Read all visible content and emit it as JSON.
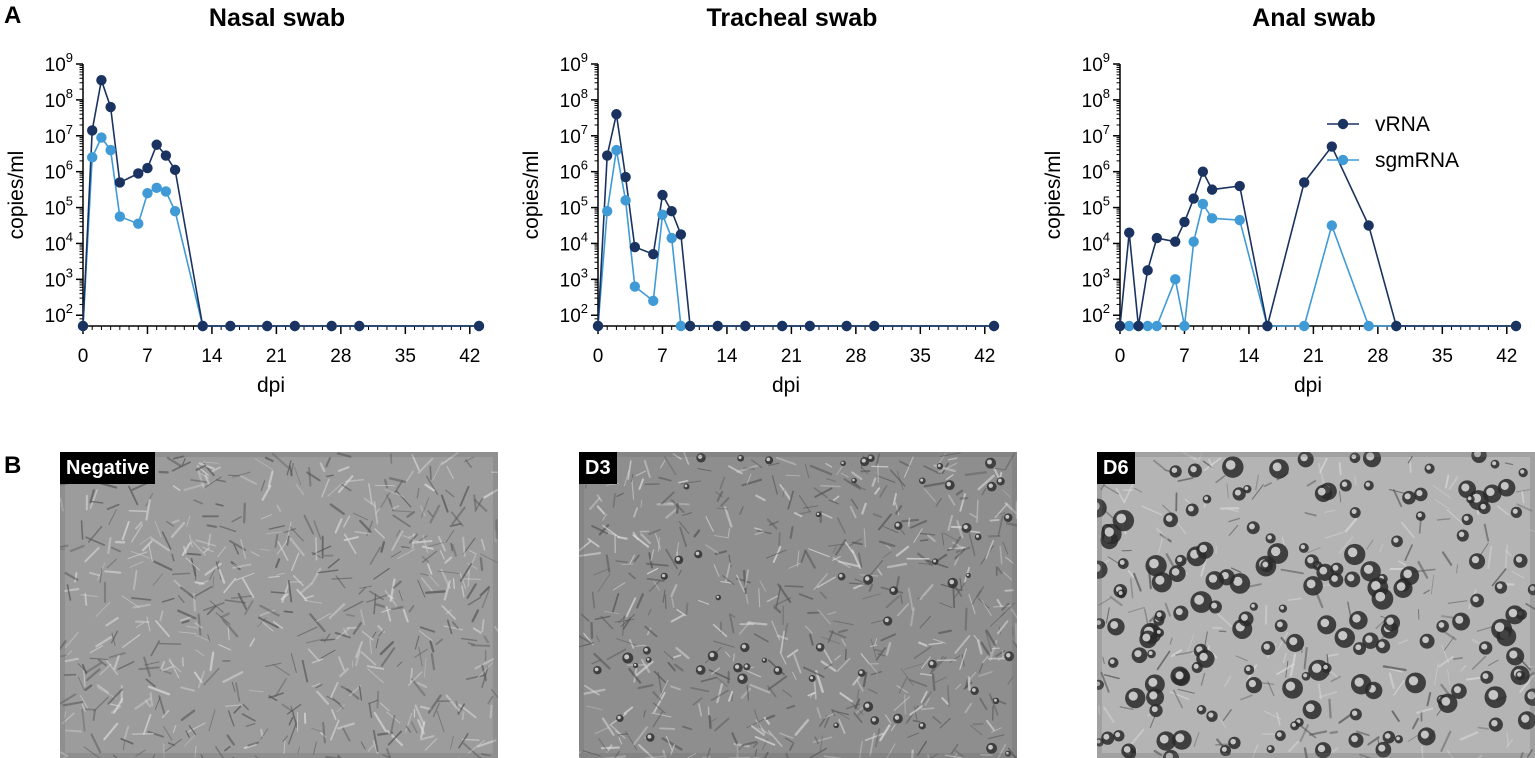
{
  "panels": {
    "a": "A",
    "b": "B"
  },
  "colors": {
    "vRNA": "#1a3360",
    "sgmRNA": "#3f9ad6"
  },
  "chart_data": [
    {
      "type": "line",
      "title": "Nasal swab",
      "xlabel": "dpi",
      "ylabel": "copies/ml",
      "yscale": "log",
      "ylim_log10": [
        1.7,
        9
      ],
      "xlim": [
        0,
        43
      ],
      "xticks": [
        0,
        7,
        14,
        21,
        28,
        35,
        42
      ],
      "ytick_exponents": [
        2,
        3,
        4,
        5,
        6,
        7,
        8,
        9
      ],
      "ytick_base": "10",
      "legend": "",
      "series": [
        {
          "name": "vRNA",
          "color": "#1a3360",
          "x": [
            0,
            1,
            2,
            3,
            4,
            6,
            7,
            8,
            9,
            10,
            13,
            16,
            20,
            23,
            27,
            30,
            43
          ],
          "log10": [
            1.7,
            7.15,
            8.55,
            7.8,
            5.7,
            5.95,
            6.1,
            6.75,
            6.45,
            6.05,
            1.7,
            1.7,
            1.7,
            1.7,
            1.7,
            1.7,
            1.7
          ]
        },
        {
          "name": "sgmRNA",
          "color": "#3f9ad6",
          "x": [
            0,
            1,
            2,
            3,
            4,
            6,
            7,
            8,
            9,
            10,
            13,
            16,
            20,
            23,
            27,
            30,
            43
          ],
          "log10": [
            1.7,
            6.4,
            6.95,
            6.6,
            4.75,
            4.55,
            5.4,
            5.55,
            5.45,
            4.9,
            1.7,
            1.7,
            1.7,
            1.7,
            1.7,
            1.7,
            1.7
          ]
        }
      ]
    },
    {
      "type": "line",
      "title": "Tracheal swab",
      "xlabel": "dpi",
      "ylabel": "copies/ml",
      "yscale": "log",
      "ylim_log10": [
        1.7,
        9
      ],
      "xlim": [
        0,
        43
      ],
      "xticks": [
        0,
        7,
        14,
        21,
        28,
        35,
        42
      ],
      "ytick_exponents": [
        2,
        3,
        4,
        5,
        6,
        7,
        8,
        9
      ],
      "ytick_base": "10",
      "legend": "",
      "series": [
        {
          "name": "vRNA",
          "color": "#1a3360",
          "x": [
            0,
            1,
            2,
            3,
            4,
            6,
            7,
            8,
            9,
            10,
            13,
            16,
            20,
            23,
            27,
            30,
            43
          ],
          "log10": [
            1.7,
            6.45,
            7.6,
            5.85,
            3.9,
            3.7,
            5.35,
            4.9,
            4.25,
            1.7,
            1.7,
            1.7,
            1.7,
            1.7,
            1.7,
            1.7,
            1.7
          ]
        },
        {
          "name": "sgmRNA",
          "color": "#3f9ad6",
          "x": [
            0,
            1,
            2,
            3,
            4,
            6,
            7,
            8,
            9,
            10,
            13,
            16,
            20,
            23,
            27,
            30,
            43
          ],
          "log10": [
            1.7,
            4.9,
            6.6,
            5.2,
            2.8,
            2.4,
            4.8,
            4.15,
            1.7,
            1.7,
            1.7,
            1.7,
            1.7,
            1.7,
            1.7,
            1.7,
            1.7
          ]
        }
      ]
    },
    {
      "type": "line",
      "title": "Anal swab",
      "xlabel": "dpi",
      "ylabel": "copies/ml",
      "yscale": "log",
      "ylim_log10": [
        1.7,
        9
      ],
      "xlim": [
        0,
        43
      ],
      "xticks": [
        0,
        7,
        14,
        21,
        28,
        35,
        42
      ],
      "ytick_exponents": [
        2,
        3,
        4,
        5,
        6,
        7,
        8,
        9
      ],
      "ytick_base": "10",
      "legend": "top-right",
      "series": [
        {
          "name": "vRNA",
          "color": "#1a3360",
          "x": [
            0,
            1,
            2,
            3,
            4,
            6,
            7,
            8,
            9,
            10,
            13,
            16,
            20,
            23,
            27,
            30,
            43
          ],
          "log10": [
            1.7,
            4.3,
            1.7,
            3.25,
            4.15,
            4.05,
            4.6,
            5.25,
            6.0,
            5.5,
            5.6,
            1.7,
            5.7,
            6.7,
            4.5,
            1.7,
            1.7
          ]
        },
        {
          "name": "sgmRNA",
          "color": "#3f9ad6",
          "x": [
            0,
            1,
            2,
            3,
            4,
            6,
            7,
            8,
            9,
            10,
            13,
            16,
            20,
            23,
            27,
            30,
            43
          ],
          "log10": [
            1.7,
            1.7,
            1.7,
            1.7,
            1.7,
            3.0,
            1.7,
            4.05,
            5.1,
            4.7,
            4.65,
            1.7,
            1.7,
            4.5,
            1.7,
            1.7,
            1.7
          ]
        }
      ]
    }
  ],
  "micrographs": [
    {
      "label": "Negative",
      "texture": "dense-fibroblast",
      "bg": "#9c9c9c",
      "cells": 0
    },
    {
      "label": "D3",
      "texture": "dense-fibroblast-with-rounded-cells",
      "bg": "#8e8e8e",
      "cells": 60
    },
    {
      "label": "D6",
      "texture": "cytopathic-rounded-cells",
      "bg": "#b4b4b4",
      "cells": 170
    }
  ]
}
